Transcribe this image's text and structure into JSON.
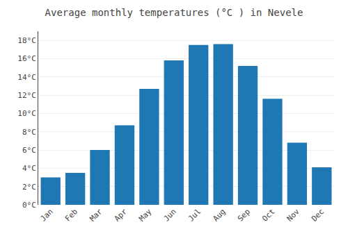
{
  "chart_data": {
    "type": "bar",
    "title": "Average monthly temperatures (°C ) in Nevele",
    "categories": [
      "Jan",
      "Feb",
      "Mar",
      "Apr",
      "May",
      "Jun",
      "Jul",
      "Aug",
      "Sep",
      "Oct",
      "Nov",
      "Dec"
    ],
    "values": [
      3.0,
      3.5,
      6.0,
      8.7,
      12.7,
      15.8,
      17.5,
      17.6,
      15.2,
      11.6,
      6.8,
      4.1
    ],
    "ylim": [
      0,
      19
    ],
    "yticks": [
      {
        "value": 0,
        "label": "0°C"
      },
      {
        "value": 2,
        "label": "2°C"
      },
      {
        "value": 4,
        "label": "4°C"
      },
      {
        "value": 6,
        "label": "6°C"
      },
      {
        "value": 8,
        "label": "8°C"
      },
      {
        "value": 10,
        "label": "10°C"
      },
      {
        "value": 12,
        "label": "12°C"
      },
      {
        "value": 14,
        "label": "14°C"
      },
      {
        "value": 16,
        "label": "16°C"
      },
      {
        "value": 18,
        "label": "18°C"
      }
    ],
    "grid": true
  }
}
